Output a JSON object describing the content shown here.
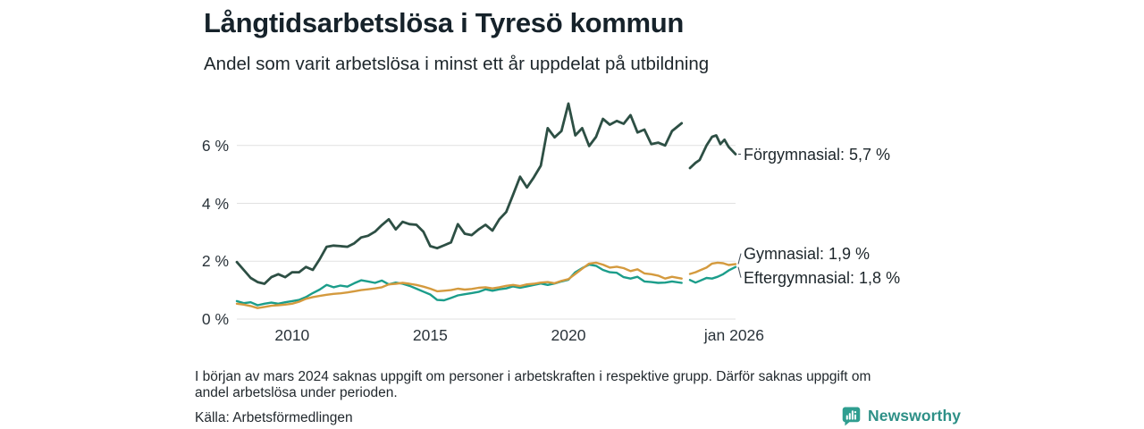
{
  "header": {
    "title": "Långtidsarbetslösa i Tyresö kommun",
    "subtitle": "Andel som varit arbetslösa i minst ett år uppdelat på utbildning"
  },
  "chart_data": {
    "type": "line",
    "title": "Långtidsarbetslösa i Tyresö kommun",
    "subtitle": "Andel som varit arbetslösa i minst ett år uppdelat på utbildning",
    "unit": "%",
    "xlim": [
      2008,
      2026.05
    ],
    "ylim": [
      0,
      7.6
    ],
    "grid": true,
    "grid_color": "#e1e1e1",
    "leader_color": "#4a5560",
    "y_ticks": [
      {
        "value": 0,
        "label": "0 %"
      },
      {
        "value": 2,
        "label": "2 %"
      },
      {
        "value": 4,
        "label": "4 %"
      },
      {
        "value": 6,
        "label": "6 %"
      }
    ],
    "x_ticks": [
      {
        "value": 2010,
        "label": "2010"
      },
      {
        "value": 2015,
        "label": "2015"
      },
      {
        "value": 2020,
        "label": "2020"
      },
      {
        "value": 2026.0,
        "label": "jan 2026"
      }
    ],
    "legend_position": "end-of-line labels, right of plot",
    "data_gap_note": "data missing around mars 2024",
    "series": [
      {
        "name": "Förgymnasial",
        "color": "#2d4f44",
        "end_label": "Förgymnasial: 5,7 %",
        "end_value": 5.7,
        "points": [
          [
            2008.0,
            1.97
          ],
          [
            2008.25,
            1.7
          ],
          [
            2008.5,
            1.42
          ],
          [
            2008.75,
            1.28
          ],
          [
            2009.0,
            1.22
          ],
          [
            2009.25,
            1.45
          ],
          [
            2009.5,
            1.55
          ],
          [
            2009.75,
            1.45
          ],
          [
            2010.0,
            1.62
          ],
          [
            2010.25,
            1.62
          ],
          [
            2010.5,
            1.8
          ],
          [
            2010.75,
            1.7
          ],
          [
            2011.0,
            2.07
          ],
          [
            2011.25,
            2.5
          ],
          [
            2011.5,
            2.54
          ],
          [
            2011.75,
            2.52
          ],
          [
            2012.0,
            2.5
          ],
          [
            2012.25,
            2.62
          ],
          [
            2012.5,
            2.82
          ],
          [
            2012.75,
            2.88
          ],
          [
            2013.0,
            3.02
          ],
          [
            2013.25,
            3.25
          ],
          [
            2013.5,
            3.45
          ],
          [
            2013.75,
            3.1
          ],
          [
            2014.0,
            3.36
          ],
          [
            2014.25,
            3.28
          ],
          [
            2014.5,
            3.26
          ],
          [
            2014.75,
            3.02
          ],
          [
            2015.0,
            2.52
          ],
          [
            2015.25,
            2.45
          ],
          [
            2015.5,
            2.55
          ],
          [
            2015.75,
            2.65
          ],
          [
            2016.0,
            3.28
          ],
          [
            2016.25,
            2.95
          ],
          [
            2016.5,
            2.9
          ],
          [
            2016.75,
            3.1
          ],
          [
            2017.0,
            3.26
          ],
          [
            2017.25,
            3.06
          ],
          [
            2017.5,
            3.45
          ],
          [
            2017.75,
            3.7
          ],
          [
            2018.0,
            4.3
          ],
          [
            2018.25,
            4.92
          ],
          [
            2018.5,
            4.55
          ],
          [
            2018.75,
            4.9
          ],
          [
            2019.0,
            5.3
          ],
          [
            2019.25,
            6.6
          ],
          [
            2019.5,
            6.28
          ],
          [
            2019.75,
            6.5
          ],
          [
            2020.0,
            7.45
          ],
          [
            2020.25,
            6.35
          ],
          [
            2020.5,
            6.6
          ],
          [
            2020.75,
            5.98
          ],
          [
            2021.0,
            6.3
          ],
          [
            2021.25,
            6.92
          ],
          [
            2021.5,
            6.72
          ],
          [
            2021.75,
            6.85
          ],
          [
            2022.0,
            6.75
          ],
          [
            2022.25,
            7.05
          ],
          [
            2022.5,
            6.45
          ],
          [
            2022.75,
            6.55
          ],
          [
            2023.0,
            6.05
          ],
          [
            2023.25,
            6.1
          ],
          [
            2023.5,
            6.0
          ],
          [
            2023.75,
            6.5
          ],
          [
            2024.1,
            6.77
          ],
          [
            2024.25,
            null
          ],
          [
            2024.4,
            5.22
          ],
          [
            2024.6,
            5.4
          ],
          [
            2024.75,
            5.5
          ],
          [
            2025.0,
            6.0
          ],
          [
            2025.2,
            6.3
          ],
          [
            2025.35,
            6.35
          ],
          [
            2025.5,
            6.05
          ],
          [
            2025.65,
            6.2
          ],
          [
            2025.8,
            5.95
          ],
          [
            2026.05,
            5.7
          ]
        ]
      },
      {
        "name": "Gymnasial",
        "color": "#d49a3e",
        "end_label": "Gymnasial: 1,9 %",
        "end_value": 1.9,
        "points": [
          [
            2008.0,
            0.53
          ],
          [
            2008.25,
            0.5
          ],
          [
            2008.5,
            0.45
          ],
          [
            2008.75,
            0.38
          ],
          [
            2009.0,
            0.42
          ],
          [
            2009.25,
            0.46
          ],
          [
            2009.5,
            0.48
          ],
          [
            2009.75,
            0.5
          ],
          [
            2010.0,
            0.53
          ],
          [
            2010.25,
            0.6
          ],
          [
            2010.5,
            0.7
          ],
          [
            2010.75,
            0.76
          ],
          [
            2011.0,
            0.8
          ],
          [
            2011.25,
            0.84
          ],
          [
            2011.5,
            0.87
          ],
          [
            2011.75,
            0.89
          ],
          [
            2012.0,
            0.92
          ],
          [
            2012.25,
            0.96
          ],
          [
            2012.5,
            1.0
          ],
          [
            2012.75,
            1.03
          ],
          [
            2013.0,
            1.06
          ],
          [
            2013.25,
            1.1
          ],
          [
            2013.5,
            1.2
          ],
          [
            2013.75,
            1.22
          ],
          [
            2014.0,
            1.25
          ],
          [
            2014.25,
            1.22
          ],
          [
            2014.5,
            1.18
          ],
          [
            2014.75,
            1.12
          ],
          [
            2015.0,
            1.05
          ],
          [
            2015.25,
            0.96
          ],
          [
            2015.5,
            0.98
          ],
          [
            2015.75,
            1.0
          ],
          [
            2016.0,
            1.05
          ],
          [
            2016.25,
            1.02
          ],
          [
            2016.5,
            1.04
          ],
          [
            2016.75,
            1.08
          ],
          [
            2017.0,
            1.1
          ],
          [
            2017.25,
            1.06
          ],
          [
            2017.5,
            1.1
          ],
          [
            2017.75,
            1.15
          ],
          [
            2018.0,
            1.18
          ],
          [
            2018.25,
            1.14
          ],
          [
            2018.5,
            1.2
          ],
          [
            2018.75,
            1.22
          ],
          [
            2019.0,
            1.26
          ],
          [
            2019.25,
            1.28
          ],
          [
            2019.5,
            1.24
          ],
          [
            2019.75,
            1.32
          ],
          [
            2020.0,
            1.38
          ],
          [
            2020.25,
            1.56
          ],
          [
            2020.5,
            1.74
          ],
          [
            2020.75,
            1.92
          ],
          [
            2021.0,
            1.95
          ],
          [
            2021.25,
            1.88
          ],
          [
            2021.5,
            1.78
          ],
          [
            2021.75,
            1.81
          ],
          [
            2022.0,
            1.76
          ],
          [
            2022.25,
            1.66
          ],
          [
            2022.5,
            1.72
          ],
          [
            2022.75,
            1.58
          ],
          [
            2023.0,
            1.55
          ],
          [
            2023.25,
            1.5
          ],
          [
            2023.5,
            1.4
          ],
          [
            2023.75,
            1.46
          ],
          [
            2024.1,
            1.4
          ],
          [
            2024.25,
            null
          ],
          [
            2024.4,
            1.56
          ],
          [
            2024.6,
            1.62
          ],
          [
            2024.75,
            1.68
          ],
          [
            2025.0,
            1.78
          ],
          [
            2025.2,
            1.92
          ],
          [
            2025.4,
            1.95
          ],
          [
            2025.6,
            1.93
          ],
          [
            2025.8,
            1.87
          ],
          [
            2026.05,
            1.9
          ]
        ]
      },
      {
        "name": "Eftergymnasial",
        "color": "#1b9d8a",
        "end_label": "Eftergymnasial: 1,8 %",
        "end_value": 1.8,
        "points": [
          [
            2008.0,
            0.62
          ],
          [
            2008.25,
            0.55
          ],
          [
            2008.5,
            0.58
          ],
          [
            2008.75,
            0.48
          ],
          [
            2009.0,
            0.53
          ],
          [
            2009.25,
            0.57
          ],
          [
            2009.5,
            0.53
          ],
          [
            2009.75,
            0.58
          ],
          [
            2010.0,
            0.62
          ],
          [
            2010.25,
            0.66
          ],
          [
            2010.5,
            0.76
          ],
          [
            2010.75,
            0.9
          ],
          [
            2011.0,
            1.02
          ],
          [
            2011.25,
            1.18
          ],
          [
            2011.5,
            1.1
          ],
          [
            2011.75,
            1.16
          ],
          [
            2012.0,
            1.12
          ],
          [
            2012.25,
            1.24
          ],
          [
            2012.5,
            1.34
          ],
          [
            2012.75,
            1.3
          ],
          [
            2013.0,
            1.25
          ],
          [
            2013.25,
            1.33
          ],
          [
            2013.5,
            1.2
          ],
          [
            2013.75,
            1.26
          ],
          [
            2014.0,
            1.22
          ],
          [
            2014.25,
            1.15
          ],
          [
            2014.5,
            1.05
          ],
          [
            2014.75,
            0.95
          ],
          [
            2015.0,
            0.85
          ],
          [
            2015.25,
            0.66
          ],
          [
            2015.5,
            0.65
          ],
          [
            2015.75,
            0.73
          ],
          [
            2016.0,
            0.82
          ],
          [
            2016.25,
            0.86
          ],
          [
            2016.5,
            0.9
          ],
          [
            2016.75,
            0.94
          ],
          [
            2017.0,
            1.03
          ],
          [
            2017.25,
            0.98
          ],
          [
            2017.5,
            1.03
          ],
          [
            2017.75,
            1.06
          ],
          [
            2018.0,
            1.13
          ],
          [
            2018.25,
            1.08
          ],
          [
            2018.5,
            1.13
          ],
          [
            2018.75,
            1.18
          ],
          [
            2019.0,
            1.23
          ],
          [
            2019.25,
            1.18
          ],
          [
            2019.5,
            1.23
          ],
          [
            2019.75,
            1.3
          ],
          [
            2020.0,
            1.36
          ],
          [
            2020.25,
            1.62
          ],
          [
            2020.5,
            1.76
          ],
          [
            2020.75,
            1.88
          ],
          [
            2021.0,
            1.84
          ],
          [
            2021.25,
            1.7
          ],
          [
            2021.5,
            1.62
          ],
          [
            2021.75,
            1.6
          ],
          [
            2022.0,
            1.45
          ],
          [
            2022.25,
            1.4
          ],
          [
            2022.5,
            1.46
          ],
          [
            2022.75,
            1.3
          ],
          [
            2023.0,
            1.28
          ],
          [
            2023.25,
            1.25
          ],
          [
            2023.5,
            1.26
          ],
          [
            2023.75,
            1.3
          ],
          [
            2024.1,
            1.25
          ],
          [
            2024.25,
            null
          ],
          [
            2024.4,
            1.35
          ],
          [
            2024.6,
            1.26
          ],
          [
            2024.75,
            1.32
          ],
          [
            2025.0,
            1.42
          ],
          [
            2025.2,
            1.4
          ],
          [
            2025.4,
            1.46
          ],
          [
            2025.6,
            1.55
          ],
          [
            2025.8,
            1.68
          ],
          [
            2026.05,
            1.8
          ]
        ]
      }
    ]
  },
  "footnote": {
    "line1": "I början av mars 2024 saknas uppgift om personer i arbetskraften i respektive grupp. Därför saknas uppgift om",
    "line2": "andel arbetslösa under perioden."
  },
  "source": {
    "text": "Källa: Arbetsförmedlingen"
  },
  "branding": {
    "name": "Newsworthy",
    "color": "#2e9087",
    "icon_color": "#2f9e90"
  }
}
